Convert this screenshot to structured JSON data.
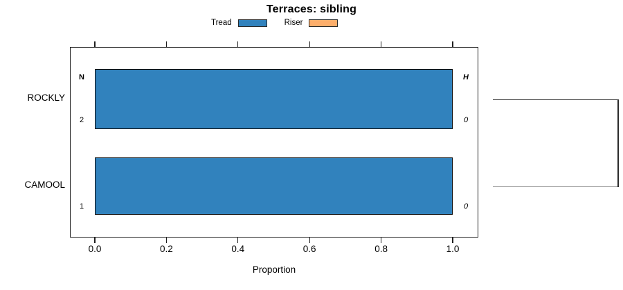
{
  "title": "Terraces: sibling",
  "legend": {
    "items": [
      {
        "label": "Tread",
        "color": "#3182bd"
      },
      {
        "label": "Riser",
        "color": "#fdae6b"
      }
    ]
  },
  "chart_data": {
    "type": "bar",
    "orientation": "horizontal",
    "title": "Terraces: sibling",
    "xlabel": "Proportion",
    "ylabel": "",
    "categories": [
      "ROCKLY",
      "CAMOOL"
    ],
    "series": [
      {
        "name": "Tread",
        "color": "#3182bd",
        "values": [
          1.0,
          1.0
        ]
      },
      {
        "name": "Riser",
        "color": "#fdae6b",
        "values": [
          0.0,
          0.0
        ]
      }
    ],
    "xticks": [
      0.0,
      0.2,
      0.4,
      0.6,
      0.8,
      1.0
    ],
    "xtick_labels": [
      "0.0",
      "0.2",
      "0.4",
      "0.6",
      "0.8",
      "1.0"
    ],
    "xlim": [
      0,
      1.08
    ],
    "grid": false,
    "legend_position": "top",
    "row_annotations": {
      "left_header": "N",
      "right_header": "H",
      "left_values": [
        "2",
        "1"
      ],
      "right_values": [
        "0",
        "0"
      ]
    },
    "dendrogram": {
      "present": true,
      "join_height": 0,
      "rows_joined": [
        "ROCKLY",
        "CAMOOL"
      ]
    }
  }
}
